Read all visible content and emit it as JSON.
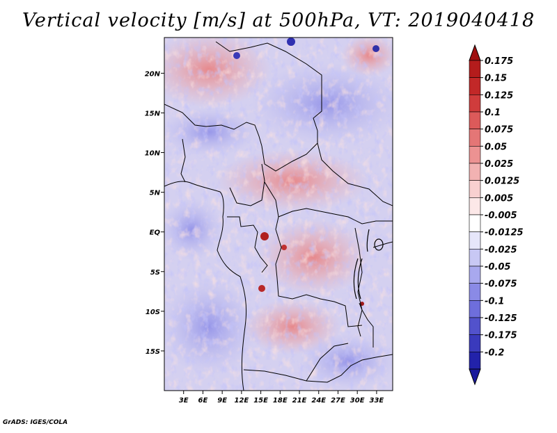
{
  "title": "Vertical velocity [m/s] at 500hPa, VT: 2019040418",
  "credit": "GrADS: IGES/COLA",
  "map": {
    "variable": "Vertical velocity",
    "units": "m/s",
    "level": "500hPa",
    "valid_time": "2019040418",
    "lon_range": [
      0,
      35.5
    ],
    "lat_range": [
      -20,
      24.5
    ],
    "lat_ticks": [
      {
        "value": 20,
        "label": "20N"
      },
      {
        "value": 15,
        "label": "15N"
      },
      {
        "value": 10,
        "label": "10N"
      },
      {
        "value": 5,
        "label": "5N"
      },
      {
        "value": 0,
        "label": "EQ"
      },
      {
        "value": -5,
        "label": "5S"
      },
      {
        "value": -10,
        "label": "10S"
      },
      {
        "value": -15,
        "label": "15S"
      }
    ],
    "lon_ticks": [
      {
        "value": 3,
        "label": "3E"
      },
      {
        "value": 6,
        "label": "6E"
      },
      {
        "value": 9,
        "label": "9E"
      },
      {
        "value": 12,
        "label": "12E"
      },
      {
        "value": 15,
        "label": "15E"
      },
      {
        "value": 18,
        "label": "18E"
      },
      {
        "value": 21,
        "label": "21E"
      },
      {
        "value": 24,
        "label": "24E"
      },
      {
        "value": 27,
        "label": "27E"
      },
      {
        "value": 30,
        "label": "30E"
      },
      {
        "value": 33,
        "label": "33E"
      }
    ]
  },
  "colorbar": {
    "levels": [
      {
        "label": "0.175",
        "color": "#b41c1c"
      },
      {
        "label": "0.15",
        "color": "#c22828"
      },
      {
        "label": "0.125",
        "color": "#d03c3c"
      },
      {
        "label": "0.1",
        "color": "#dc5a5a"
      },
      {
        "label": "0.075",
        "color": "#e47676"
      },
      {
        "label": "0.05",
        "color": "#ec9292"
      },
      {
        "label": "0.025",
        "color": "#f2b2b2"
      },
      {
        "label": "0.0125",
        "color": "#f8d0d0"
      },
      {
        "label": "0.005",
        "color": "#fce8e8"
      },
      {
        "label": "-0.005",
        "color": "#ffffff"
      },
      {
        "label": "-0.0125",
        "color": "#e6e6fa"
      },
      {
        "label": "-0.025",
        "color": "#c8c8f4"
      },
      {
        "label": "-0.05",
        "color": "#a8a8ee"
      },
      {
        "label": "-0.075",
        "color": "#8a8ae6"
      },
      {
        "label": "-0.1",
        "color": "#6e6edc"
      },
      {
        "label": "-0.125",
        "color": "#5252cc"
      },
      {
        "label": "-0.175",
        "color": "#3a3abc"
      },
      {
        "label": "-0.2",
        "color": "#2222aa"
      }
    ],
    "top_triangle_color": "#a01010",
    "bottom_triangle_color": "#1a1a9c"
  }
}
